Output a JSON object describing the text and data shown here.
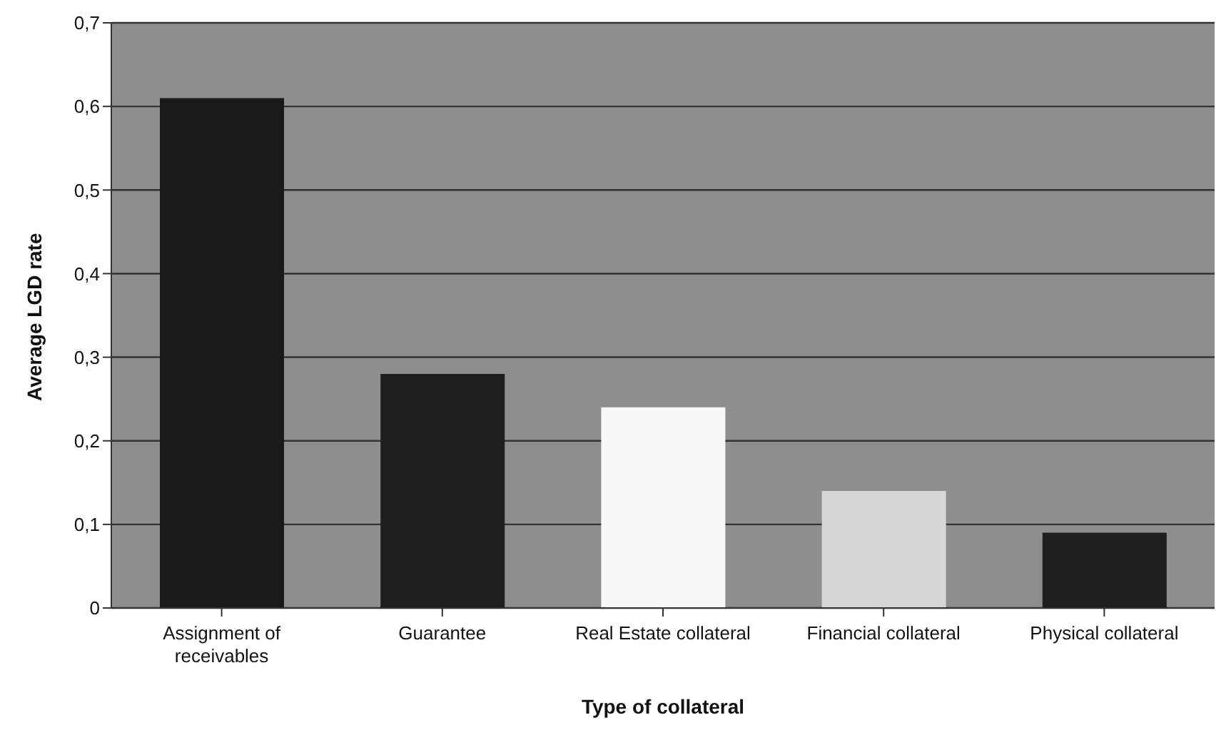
{
  "chart_data": {
    "type": "bar",
    "xlabel": "Type of collateral",
    "ylabel": "Average LGD rate",
    "categories": [
      "Assignment of receivables",
      "Guarantee",
      "Real Estate collateral",
      "Financial collateral",
      "Physical collateral"
    ],
    "values": [
      0.61,
      0.28,
      0.24,
      0.14,
      0.09
    ],
    "colors": [
      "#1a1a1a",
      "#1e1e1e",
      "#f8f8f8",
      "#d6d6d6",
      "#1e1e1e"
    ],
    "ylim": [
      0,
      0.7
    ],
    "yticks": [
      {
        "value": 0,
        "label": "0"
      },
      {
        "value": 0.1,
        "label": "0,1"
      },
      {
        "value": 0.2,
        "label": "0,2"
      },
      {
        "value": 0.3,
        "label": "0,3"
      },
      {
        "value": 0.4,
        "label": "0,4"
      },
      {
        "value": 0.5,
        "label": "0,5"
      },
      {
        "value": 0.6,
        "label": "0,6"
      },
      {
        "value": 0.7,
        "label": "0,7"
      }
    ],
    "grid": "y",
    "legend": false
  }
}
